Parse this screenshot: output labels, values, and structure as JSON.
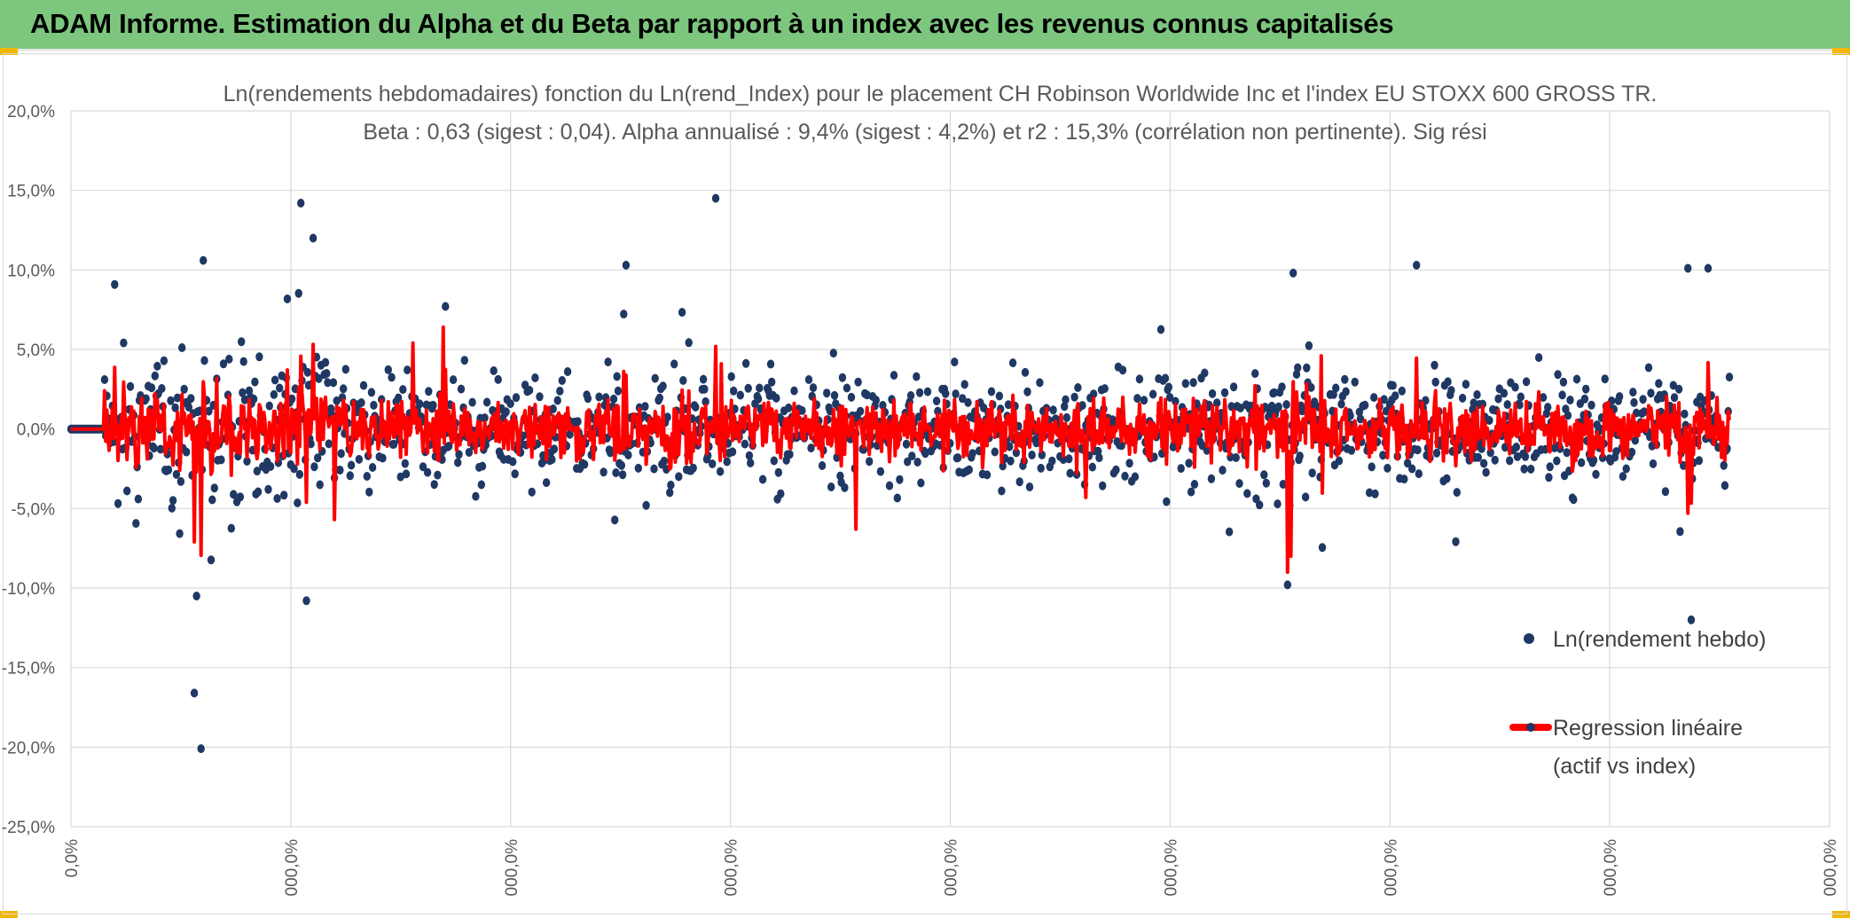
{
  "header": {
    "title": "ADAM Informe. Estimation du Alpha et du Beta par rapport à un index avec les revenus connus capitalisés",
    "bg_color": "#7dc67e",
    "corner_color": "#f2b705"
  },
  "chart_data": {
    "type": "scatter",
    "title_line1": "Ln(rendements hebdomadaires) fonction du Ln(rend_Index) pour le placement CH Robinson Worldwide Inc et l'index EU STOXX 600 GROSS TR.",
    "title_line2": "Beta : 0,63 (sigest : 0,04). Alpha annualisé : 9,4% (sigest : 4,2%) et r2 : 15,3% (corrélation non pertinente). Sig rési",
    "ylim": [
      -25,
      20
    ],
    "y_ticks": [
      "20,0%",
      "15,0%",
      "10,0%",
      "5,0%",
      "0,0%",
      "-5,0%",
      "-10,0%",
      "-15,0%",
      "-20,0%",
      "-25,0%"
    ],
    "x_ticks": [
      "0,0%",
      "000,0%",
      "000,0%",
      "000,0%",
      "000,0%",
      "000,0%",
      "000,0%",
      "000,0%",
      "000,0%"
    ],
    "grid": true,
    "legend_position": "right",
    "series": [
      {
        "name": "Ln(rendement hebdo)",
        "kind": "scatter",
        "color": "#1f3864",
        "flat_prefix_points": 30,
        "n_points": 1480,
        "extreme_points": [
          {
            "i": 110,
            "y": -16.6
          },
          {
            "i": 116,
            "y": -20.1
          },
          {
            "i": 112,
            "y": -10.5
          },
          {
            "i": 118,
            "y": 10.6
          },
          {
            "i": 205,
            "y": 14.2
          },
          {
            "i": 216,
            "y": 12.0
          },
          {
            "i": 210,
            "y": -10.8
          },
          {
            "i": 575,
            "y": 14.5
          },
          {
            "i": 1085,
            "y": -9.8
          },
          {
            "i": 1090,
            "y": 9.8
          },
          {
            "i": 1445,
            "y": -12.0
          },
          {
            "i": 1442,
            "y": 10.1
          },
          {
            "i": 1460,
            "y": 10.1
          },
          {
            "i": 1200,
            "y": 10.3
          },
          {
            "i": 495,
            "y": 10.3
          }
        ]
      },
      {
        "name": "Regression linéaire (actif vs index)",
        "name_line1": "Regression linéaire",
        "name_line2": "(actif vs index)",
        "kind": "line",
        "color": "#ff0000",
        "beta": 0.63,
        "spikes": [
          {
            "i": 110,
            "y": -7.1
          },
          {
            "i": 332,
            "y": 6.4
          },
          {
            "i": 305,
            "y": 5.4
          },
          {
            "i": 580,
            "y": 4.1
          },
          {
            "i": 700,
            "y": -6.3
          },
          {
            "i": 1085,
            "y": -9.0
          },
          {
            "i": 1088,
            "y": -8.0
          },
          {
            "i": 1442,
            "y": -5.3
          },
          {
            "i": 1115,
            "y": 4.6
          },
          {
            "i": 235,
            "y": -5.7
          },
          {
            "i": 905,
            "y": -4.3
          }
        ]
      }
    ]
  }
}
